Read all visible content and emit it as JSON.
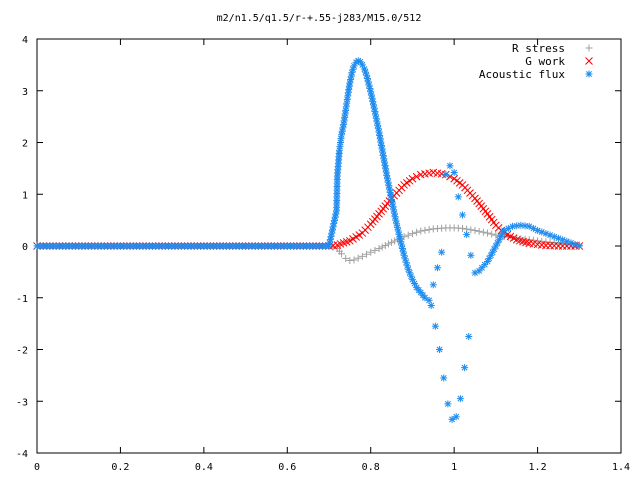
{
  "chart_data": {
    "type": "scatter",
    "title": "m2/n1.5/q1.5/r-+.55-j283/M15.0/512",
    "xlabel": "",
    "ylabel": "",
    "xlim": [
      0,
      1.4
    ],
    "ylim": [
      -4,
      4
    ],
    "x_ticks": [
      "0",
      "0.2",
      "0.4",
      "0.6",
      "0.8",
      "1",
      "1.2",
      "1.4"
    ],
    "y_ticks": [
      "4",
      "3",
      "2",
      "1",
      "0",
      "-1",
      "-2",
      "-3",
      "-4"
    ],
    "grid": false,
    "legend_position": "top-right",
    "series": [
      {
        "name": "R stress",
        "marker": "+",
        "color": "#a0a0a0",
        "x": [
          0.0,
          0.2,
          0.4,
          0.6,
          0.7,
          0.72,
          0.73,
          0.74,
          0.75,
          0.76,
          0.78,
          0.8,
          0.82,
          0.85,
          0.88,
          0.9,
          0.92,
          0.95,
          0.98,
          1.0,
          1.02,
          1.05,
          1.08,
          1.1,
          1.12,
          1.15,
          1.18,
          1.2,
          1.22,
          1.25,
          1.28,
          1.3
        ],
        "y": [
          0.0,
          0.0,
          0.0,
          0.0,
          0.0,
          -0.05,
          -0.15,
          -0.24,
          -0.28,
          -0.27,
          -0.2,
          -0.12,
          -0.05,
          0.07,
          0.18,
          0.24,
          0.29,
          0.33,
          0.35,
          0.35,
          0.34,
          0.3,
          0.25,
          0.21,
          0.18,
          0.15,
          0.12,
          0.1,
          0.08,
          0.06,
          0.04,
          0.02
        ]
      },
      {
        "name": "G work",
        "marker": "x",
        "color": "#ff0000",
        "x": [
          0.0,
          0.2,
          0.4,
          0.6,
          0.7,
          0.72,
          0.75,
          0.78,
          0.8,
          0.82,
          0.85,
          0.88,
          0.9,
          0.92,
          0.95,
          0.98,
          1.0,
          1.02,
          1.05,
          1.08,
          1.1,
          1.12,
          1.15,
          1.18,
          1.2,
          1.22,
          1.25,
          1.28,
          1.3
        ],
        "y": [
          0.0,
          0.0,
          0.0,
          0.0,
          0.0,
          0.02,
          0.1,
          0.25,
          0.42,
          0.62,
          0.92,
          1.18,
          1.3,
          1.38,
          1.42,
          1.38,
          1.3,
          1.18,
          0.92,
          0.62,
          0.4,
          0.25,
          0.12,
          0.05,
          0.03,
          0.01,
          0.0,
          0.0,
          0.0
        ]
      },
      {
        "name": "Acoustic flux",
        "marker": "*",
        "color": "#1e8cf0",
        "x": [
          0.0,
          0.2,
          0.4,
          0.6,
          0.7,
          0.718,
          0.72,
          0.725,
          0.73,
          0.735,
          0.74,
          0.745,
          0.75,
          0.755,
          0.76,
          0.765,
          0.77,
          0.775,
          0.78,
          0.785,
          0.79,
          0.8,
          0.81,
          0.82,
          0.83,
          0.84,
          0.85,
          0.86,
          0.87,
          0.88,
          0.89,
          0.9,
          0.91,
          0.92,
          0.93,
          0.94,
          0.945,
          0.95,
          0.955,
          0.96,
          0.965,
          0.97,
          0.975,
          0.98,
          0.985,
          0.99,
          0.995,
          1.0,
          1.005,
          1.01,
          1.015,
          1.02,
          1.025,
          1.03,
          1.035,
          1.04,
          1.05,
          1.06,
          1.08,
          1.1,
          1.12,
          1.14,
          1.16,
          1.18,
          1.2,
          1.22,
          1.24,
          1.26,
          1.28,
          1.3
        ],
        "y": [
          0.0,
          0.0,
          0.0,
          0.0,
          0.0,
          0.68,
          1.35,
          1.85,
          2.15,
          2.35,
          2.62,
          2.9,
          3.15,
          3.35,
          3.48,
          3.55,
          3.58,
          3.56,
          3.5,
          3.42,
          3.3,
          2.98,
          2.6,
          2.2,
          1.75,
          1.3,
          0.9,
          0.5,
          0.15,
          -0.18,
          -0.45,
          -0.65,
          -0.8,
          -0.9,
          -1.0,
          -1.05,
          -1.15,
          -0.75,
          -1.55,
          -0.42,
          -2.0,
          -0.12,
          -2.55,
          1.38,
          -3.05,
          1.55,
          -3.35,
          1.42,
          -3.3,
          0.95,
          -2.95,
          0.6,
          -2.35,
          0.22,
          -1.75,
          -0.18,
          -0.52,
          -0.48,
          -0.3,
          0.0,
          0.3,
          0.38,
          0.4,
          0.38,
          0.3,
          0.24,
          0.18,
          0.12,
          0.06,
          0.0
        ]
      }
    ]
  }
}
